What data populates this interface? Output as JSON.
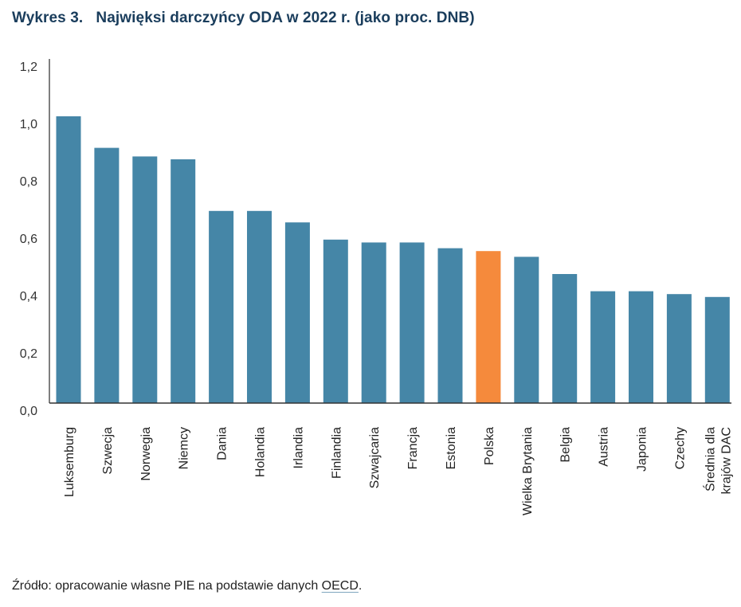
{
  "header": {
    "title": "Wykres 3.   Najwięksi darczyńcy ODA w 2022 r. (jako proc. DNB)"
  },
  "footer": {
    "source_prefix": "Źródło: opracowanie własne PIE na podstawie danych ",
    "source_link": "OECD",
    "source_suffix": "."
  },
  "colors": {
    "bar": "#4586a7",
    "highlight": "#f58a3c",
    "axis": "#555555"
  },
  "chart_data": {
    "type": "bar",
    "title": "Najwięksi darczyńcy ODA w 2022 r. (jako proc. DNB)",
    "xlabel": "",
    "ylabel": "",
    "ylim": [
      0,
      1.2
    ],
    "yticks": [
      "0,0",
      "0,2",
      "0,4",
      "0,6",
      "0,8",
      "1,0",
      "1,2"
    ],
    "ytick_values": [
      0,
      0.2,
      0.4,
      0.6,
      0.8,
      1.0,
      1.2
    ],
    "grid": false,
    "legend": "none",
    "categories": [
      "Luksemburg",
      "Szwecja",
      "Norwegia",
      "Niemcy",
      "Dania",
      "Holandia",
      "Irlandia",
      "Finlandia",
      "Szwajcaria",
      "Francja",
      "Estonia",
      "Polska",
      "Wielka Brytania",
      "Belgia",
      "Austria",
      "Japonia",
      "Czechy",
      "Średnia dla|krajów DAC"
    ],
    "values": [
      1.0,
      0.89,
      0.86,
      0.85,
      0.67,
      0.67,
      0.63,
      0.57,
      0.56,
      0.56,
      0.54,
      0.53,
      0.51,
      0.45,
      0.39,
      0.39,
      0.38,
      0.37
    ],
    "highlight_category": "Polska"
  }
}
